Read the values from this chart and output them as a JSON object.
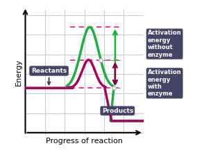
{
  "bg_color": "#ffffff",
  "grid_color": "#c8c8c8",
  "curve_green_color": "#1db040",
  "curve_magenta_color": "#aa005a",
  "label_box_color": "#444466",
  "label_text_color": "#ffffff",
  "dashed_color": "#ff2288",
  "arrow_green_color": "#1db040",
  "arrow_magenta_color": "#880044",
  "reactant_level": 0.38,
  "product_level": 0.1,
  "peak_green": 0.9,
  "peak_magenta": 0.62,
  "xlabel": "Progress of reaction",
  "ylabel": "Energy",
  "label_reactants": "Reactants",
  "label_products": "Products",
  "label_no_enzyme": "Activation\nenergy\nwithout\nenzyme",
  "label_enzyme": "Activation\nenergy\nwith\nenzyme"
}
